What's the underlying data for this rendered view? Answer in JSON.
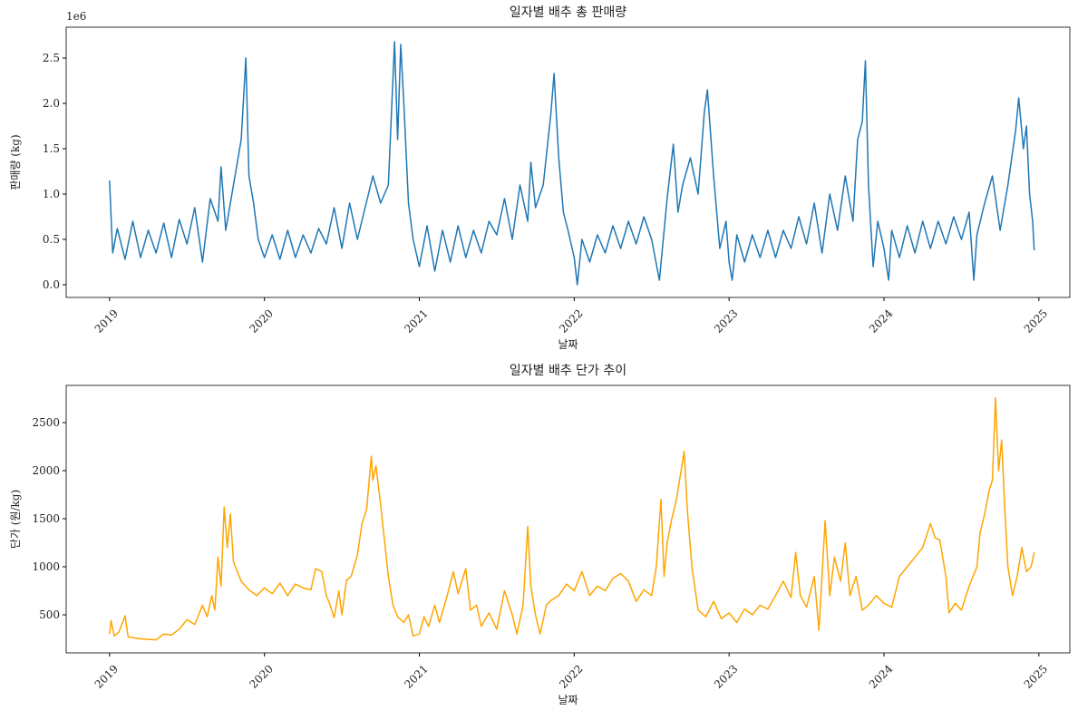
{
  "chart_data": [
    {
      "type": "line",
      "title": "일자별 배추 총 판매량",
      "xlabel": "날짜",
      "ylabel": "판매량 (kg)",
      "y_offset_label": "1e6",
      "color": "#1f77b4",
      "xlim": [
        2018.72,
        2025.2
      ],
      "xticks": [
        2019,
        2020,
        2021,
        2022,
        2023,
        2024,
        2025
      ],
      "ylim": [
        -0.14,
        2.84
      ],
      "yticks": [
        {
          "value": 0,
          "label": "0.0"
        },
        0.5,
        {
          "value": 1,
          "label": "1.0"
        },
        1.5,
        {
          "value": 2,
          "label": "2.0"
        },
        2.5
      ],
      "x": [
        2019.0,
        2019.02,
        2019.05,
        2019.1,
        2019.15,
        2019.2,
        2019.25,
        2019.3,
        2019.35,
        2019.4,
        2019.45,
        2019.5,
        2019.55,
        2019.6,
        2019.65,
        2019.7,
        2019.72,
        2019.75,
        2019.8,
        2019.85,
        2019.88,
        2019.9,
        2019.93,
        2019.96,
        2020.0,
        2020.05,
        2020.1,
        2020.15,
        2020.2,
        2020.25,
        2020.3,
        2020.35,
        2020.4,
        2020.45,
        2020.5,
        2020.55,
        2020.6,
        2020.65,
        2020.7,
        2020.75,
        2020.8,
        2020.84,
        2020.86,
        2020.88,
        2020.9,
        2020.93,
        2020.96,
        2021.0,
        2021.05,
        2021.1,
        2021.15,
        2021.2,
        2021.25,
        2021.3,
        2021.35,
        2021.4,
        2021.45,
        2021.5,
        2021.55,
        2021.6,
        2021.65,
        2021.7,
        2021.72,
        2021.75,
        2021.8,
        2021.85,
        2021.87,
        2021.9,
        2021.93,
        2021.96,
        2022.0,
        2022.02,
        2022.05,
        2022.1,
        2022.15,
        2022.2,
        2022.25,
        2022.3,
        2022.35,
        2022.4,
        2022.45,
        2022.5,
        2022.55,
        2022.6,
        2022.64,
        2022.67,
        2022.7,
        2022.75,
        2022.8,
        2022.84,
        2022.86,
        2022.9,
        2022.94,
        2022.98,
        2023.0,
        2023.02,
        2023.05,
        2023.1,
        2023.15,
        2023.2,
        2023.25,
        2023.3,
        2023.35,
        2023.4,
        2023.45,
        2023.5,
        2023.55,
        2023.6,
        2023.65,
        2023.7,
        2023.75,
        2023.8,
        2023.83,
        2023.86,
        2023.88,
        2023.9,
        2023.93,
        2023.96,
        2024.0,
        2024.03,
        2024.05,
        2024.1,
        2024.15,
        2024.2,
        2024.25,
        2024.3,
        2024.35,
        2024.4,
        2024.45,
        2024.5,
        2024.55,
        2024.58,
        2024.6,
        2024.65,
        2024.7,
        2024.75,
        2024.8,
        2024.85,
        2024.87,
        2024.9,
        2024.92,
        2024.94,
        2024.96,
        2024.97
      ],
      "values": [
        1.15,
        0.35,
        0.62,
        0.28,
        0.7,
        0.3,
        0.6,
        0.35,
        0.68,
        0.3,
        0.72,
        0.45,
        0.85,
        0.25,
        0.95,
        0.7,
        1.3,
        0.6,
        1.1,
        1.6,
        2.5,
        1.2,
        0.9,
        0.5,
        0.3,
        0.55,
        0.28,
        0.6,
        0.3,
        0.55,
        0.35,
        0.62,
        0.45,
        0.85,
        0.4,
        0.9,
        0.5,
        0.85,
        1.2,
        0.9,
        1.1,
        2.68,
        1.6,
        2.65,
        2.0,
        0.9,
        0.5,
        0.2,
        0.65,
        0.15,
        0.6,
        0.25,
        0.65,
        0.3,
        0.6,
        0.35,
        0.7,
        0.55,
        0.95,
        0.5,
        1.1,
        0.7,
        1.35,
        0.85,
        1.1,
        1.9,
        2.33,
        1.4,
        0.8,
        0.6,
        0.3,
        0.0,
        0.5,
        0.25,
        0.55,
        0.35,
        0.65,
        0.4,
        0.7,
        0.45,
        0.75,
        0.5,
        0.05,
        0.95,
        1.55,
        0.8,
        1.1,
        1.4,
        1.0,
        1.9,
        2.15,
        1.2,
        0.4,
        0.7,
        0.25,
        0.05,
        0.55,
        0.25,
        0.55,
        0.3,
        0.6,
        0.3,
        0.6,
        0.4,
        0.75,
        0.45,
        0.9,
        0.35,
        1.0,
        0.6,
        1.2,
        0.7,
        1.6,
        1.8,
        2.47,
        1.1,
        0.2,
        0.7,
        0.4,
        0.05,
        0.6,
        0.3,
        0.65,
        0.35,
        0.7,
        0.4,
        0.7,
        0.45,
        0.75,
        0.5,
        0.8,
        0.05,
        0.55,
        0.9,
        1.2,
        0.6,
        1.1,
        1.7,
        2.06,
        1.5,
        1.75,
        1.0,
        0.7,
        0.38
      ]
    },
    {
      "type": "line",
      "title": "일자별 배추 단가 추이",
      "xlabel": "날짜",
      "ylabel": "단가 (원/kg)",
      "color": "#ffa500",
      "xlim": [
        2018.72,
        2025.2
      ],
      "xticks": [
        2019,
        2020,
        2021,
        2022,
        2023,
        2024,
        2025
      ],
      "ylim": [
        104,
        2887
      ],
      "yticks": [
        500,
        1000,
        1500,
        2000,
        2500
      ],
      "x": [
        2019.0,
        2019.01,
        2019.03,
        2019.06,
        2019.1,
        2019.12,
        2019.2,
        2019.3,
        2019.35,
        2019.4,
        2019.45,
        2019.5,
        2019.55,
        2019.6,
        2019.63,
        2019.66,
        2019.68,
        2019.7,
        2019.72,
        2019.74,
        2019.76,
        2019.78,
        2019.8,
        2019.85,
        2019.9,
        2019.95,
        2020.0,
        2020.05,
        2020.1,
        2020.15,
        2020.2,
        2020.25,
        2020.3,
        2020.33,
        2020.37,
        2020.4,
        2020.42,
        2020.45,
        2020.48,
        2020.5,
        2020.53,
        2020.56,
        2020.6,
        2020.63,
        2020.66,
        2020.69,
        2020.7,
        2020.72,
        2020.75,
        2020.78,
        2020.8,
        2020.83,
        2020.86,
        2020.9,
        2020.93,
        2020.96,
        2021.0,
        2021.03,
        2021.06,
        2021.1,
        2021.13,
        2021.18,
        2021.22,
        2021.25,
        2021.3,
        2021.33,
        2021.37,
        2021.4,
        2021.45,
        2021.5,
        2021.55,
        2021.6,
        2021.63,
        2021.67,
        2021.7,
        2021.72,
        2021.75,
        2021.78,
        2021.82,
        2021.85,
        2021.9,
        2021.95,
        2022.0,
        2022.05,
        2022.1,
        2022.15,
        2022.2,
        2022.25,
        2022.3,
        2022.35,
        2022.4,
        2022.45,
        2022.5,
        2022.53,
        2022.56,
        2022.58,
        2022.6,
        2022.63,
        2022.66,
        2022.69,
        2022.71,
        2022.73,
        2022.76,
        2022.8,
        2022.85,
        2022.9,
        2022.95,
        2023.0,
        2023.05,
        2023.1,
        2023.15,
        2023.2,
        2023.25,
        2023.3,
        2023.35,
        2023.4,
        2023.43,
        2023.46,
        2023.5,
        2023.55,
        2023.58,
        2023.6,
        2023.62,
        2023.65,
        2023.68,
        2023.72,
        2023.75,
        2023.78,
        2023.82,
        2023.86,
        2023.9,
        2023.95,
        2024.0,
        2024.05,
        2024.1,
        2024.15,
        2024.2,
        2024.25,
        2024.3,
        2024.33,
        2024.36,
        2024.4,
        2024.42,
        2024.46,
        2024.5,
        2024.55,
        2024.6,
        2024.62,
        2024.65,
        2024.68,
        2024.7,
        2024.72,
        2024.74,
        2024.76,
        2024.78,
        2024.8,
        2024.83,
        2024.86,
        2024.89,
        2024.92,
        2024.95,
        2024.97
      ],
      "values": [
        300,
        440,
        280,
        320,
        490,
        270,
        250,
        240,
        300,
        290,
        350,
        450,
        400,
        600,
        480,
        700,
        550,
        1100,
        800,
        1620,
        1200,
        1550,
        1050,
        850,
        760,
        700,
        780,
        720,
        830,
        700,
        820,
        780,
        760,
        980,
        950,
        700,
        620,
        470,
        750,
        500,
        860,
        900,
        1120,
        1450,
        1600,
        2150,
        1900,
        2050,
        1650,
        1200,
        900,
        600,
        480,
        420,
        500,
        280,
        300,
        480,
        380,
        600,
        420,
        700,
        950,
        720,
        980,
        550,
        600,
        380,
        520,
        350,
        750,
        500,
        300,
        600,
        1420,
        800,
        500,
        300,
        600,
        650,
        700,
        820,
        750,
        950,
        700,
        800,
        750,
        880,
        930,
        850,
        640,
        760,
        700,
        1000,
        1700,
        900,
        1250,
        1500,
        1700,
        2000,
        2200,
        1600,
        1000,
        550,
        480,
        640,
        460,
        520,
        420,
        560,
        500,
        600,
        560,
        700,
        850,
        680,
        1150,
        700,
        580,
        900,
        340,
        900,
        1480,
        700,
        1100,
        850,
        1250,
        700,
        900,
        550,
        600,
        700,
        620,
        580,
        900,
        1000,
        1100,
        1200,
        1450,
        1300,
        1280,
        900,
        520,
        620,
        550,
        800,
        1000,
        1350,
        1550,
        1800,
        1900,
        2760,
        2000,
        2320,
        1600,
        1000,
        700,
        900,
        1200,
        950,
        1000,
        1150
      ]
    }
  ]
}
